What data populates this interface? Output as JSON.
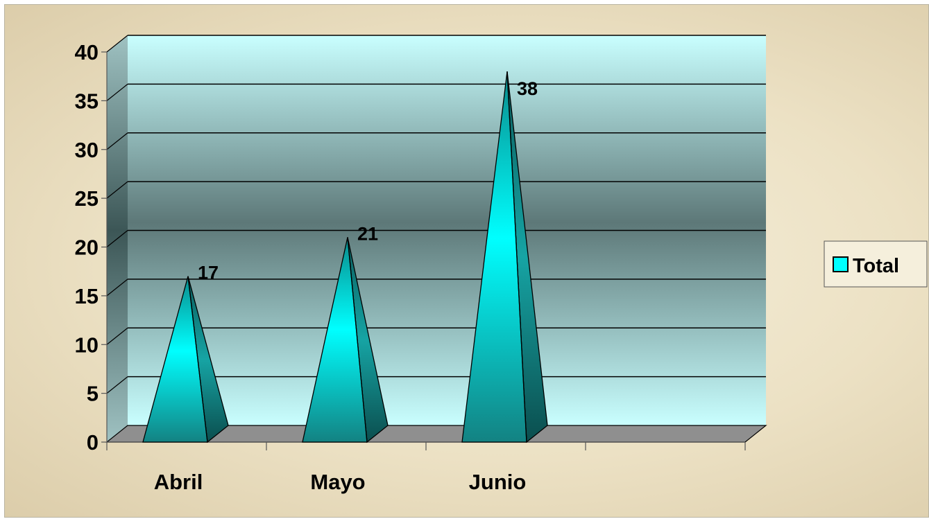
{
  "chart_data": {
    "type": "bar",
    "bar_shape": "pyramid-3d",
    "categories": [
      "Abril",
      "Mayo",
      "Junio"
    ],
    "series": [
      {
        "name": "Total",
        "values": [
          17,
          21,
          38
        ]
      }
    ],
    "data_labels": [
      "17",
      "21",
      "38"
    ],
    "ylim": [
      0,
      40
    ],
    "yticks": [
      "0",
      "5",
      "10",
      "15",
      "20",
      "25",
      "30",
      "35",
      "40"
    ],
    "grid": true,
    "legend_position": "right",
    "colors": {
      "pyramid_light": "#00ffff",
      "pyramid_dark": "#0e6f6f",
      "floor": "#8f8f8f",
      "wall_light": "#c9ffff",
      "wall_dark": "#5d7878",
      "frame_background": "#eee3c7"
    }
  }
}
